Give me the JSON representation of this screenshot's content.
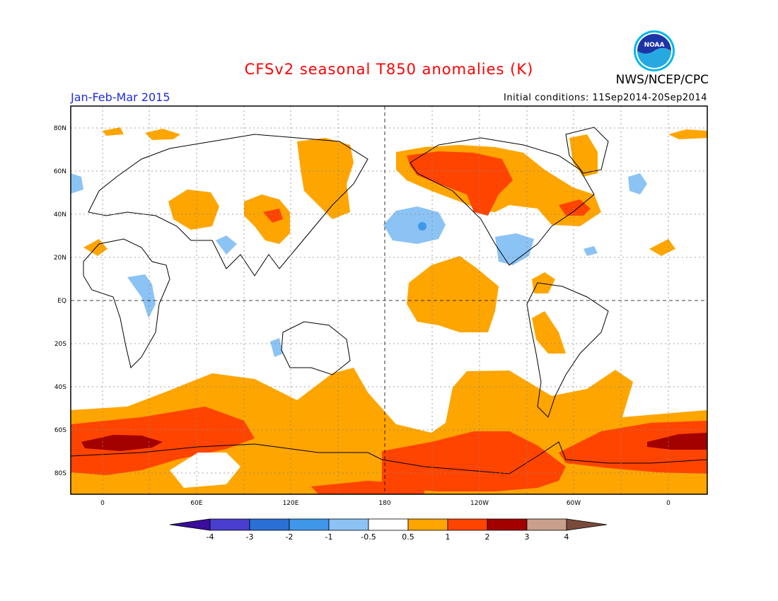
{
  "header": {
    "title": "CFSv2 seasonal T850 anomalies (K)",
    "agency": "NWS/NCEP/CPC",
    "period": "Jan-Feb-Mar 2015",
    "initial_conditions": "Initial conditions: 11Sep2014-20Sep2014",
    "logo_text": "NOAA"
  },
  "map": {
    "lat_labels": [
      "80N",
      "60N",
      "40N",
      "20N",
      "EQ",
      "20S",
      "40S",
      "60S",
      "80S"
    ],
    "lon_labels": [
      "0",
      "60E",
      "120E",
      "180",
      "120W",
      "60W",
      "0"
    ]
  },
  "colorbar": {
    "tick_labels": [
      "-4",
      "-3",
      "-2",
      "-1",
      "-0.5",
      "0.5",
      "1",
      "2",
      "3",
      "4"
    ],
    "colors": [
      "#3a0d9b",
      "#4a3ed0",
      "#2a6fd6",
      "#3f97ea",
      "#8cc3f5",
      "#ffffff",
      "#ffa500",
      "#ff4400",
      "#a30000",
      "#c8a08c",
      "#7a4a3a"
    ]
  },
  "colors": {
    "title": "#ff0000",
    "period": "#1f2bdb",
    "land_outline": "#000000",
    "gridline": "#888888"
  }
}
